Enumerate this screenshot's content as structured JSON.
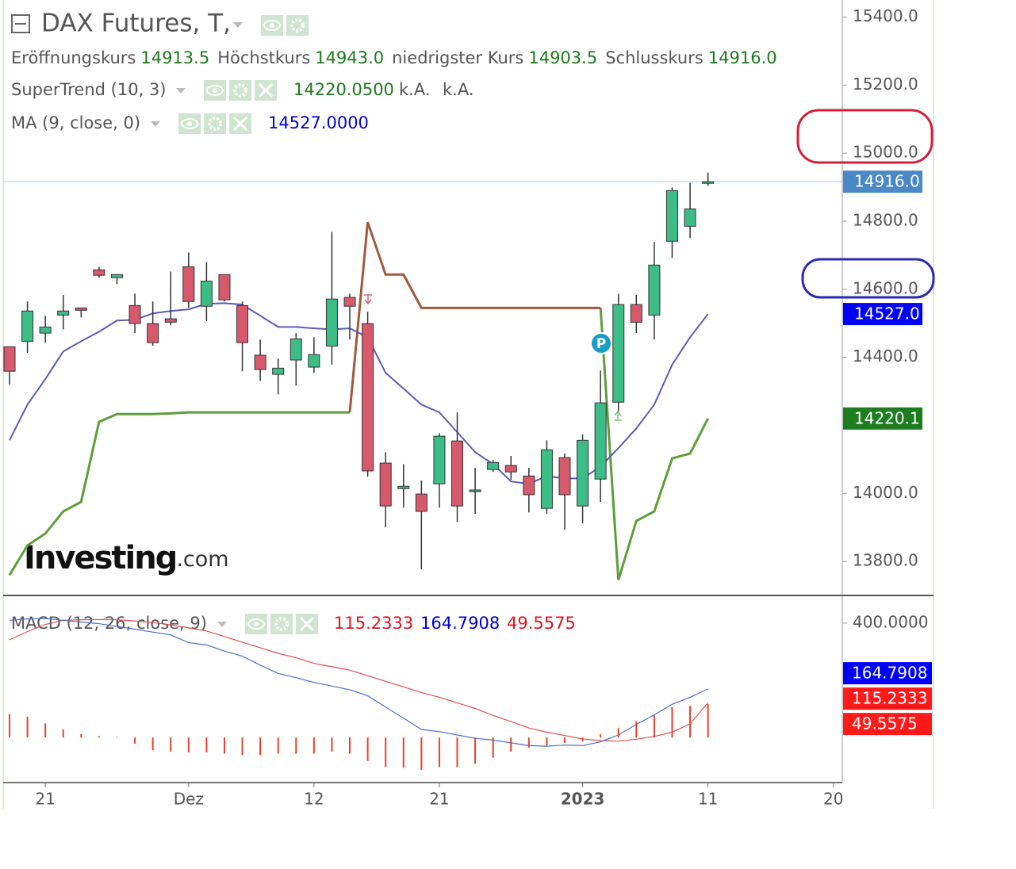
{
  "chart_data": [
    {
      "type": "candlestick",
      "title": "DAX Futures, T,",
      "categories": [
        null,
        null,
        "21",
        null,
        null,
        null,
        null,
        null,
        null,
        null,
        "Dez",
        null,
        null,
        null,
        null,
        null,
        null,
        "12",
        null,
        null,
        null,
        null,
        null,
        null,
        "21",
        null,
        null,
        null,
        null,
        null,
        null,
        null,
        "2023",
        null,
        null,
        null,
        null,
        null,
        null,
        "11",
        null,
        null,
        null,
        null,
        null,
        null,
        "20"
      ],
      "open": [
        14431,
        14447,
        14471,
        14524,
        14545,
        14657,
        14634,
        14552,
        14499,
        14513,
        14666,
        14550,
        14643,
        14552,
        14406,
        14350,
        14392,
        14371,
        14433,
        14576,
        14499,
        14089,
        14014,
        13998,
        14028,
        14154,
        14005,
        14070,
        14082,
        14051,
        13956,
        14105,
        13963,
        14042,
        14268,
        14555,
        14524,
        14741,
        14785,
        14913.5,
        null,
        null,
        null,
        null,
        null,
        null,
        null
      ],
      "high": [
        14431,
        14564,
        14522,
        14583,
        14545,
        14666,
        14643,
        14587,
        14564,
        14652,
        14708,
        14680,
        14643,
        14564,
        14452,
        14396,
        14471,
        14459,
        14769,
        14587,
        14534,
        14121,
        14086,
        14038,
        14177,
        14238,
        14075,
        14098,
        14110,
        14075,
        14156,
        14117,
        14173,
        14361,
        14587,
        14583,
        14739,
        14899,
        14913,
        14943,
        null,
        null,
        null,
        null,
        null,
        null,
        null
      ],
      "low": [
        14319,
        14413,
        14443,
        14482,
        14517,
        14634,
        14615,
        14471,
        14434,
        14494,
        14545,
        14506,
        14564,
        14359,
        14331,
        14291,
        14317,
        14354,
        14378,
        14452,
        14049,
        13900,
        13958,
        13777,
        13958,
        13916,
        13940,
        14063,
        14040,
        13944,
        13940,
        13893,
        13912,
        13975,
        14238,
        14471,
        14452,
        14692,
        14750,
        14903.5,
        null,
        null,
        null,
        null,
        null,
        null,
        null
      ],
      "close": [
        14359,
        14536,
        14489,
        14536,
        14538,
        14641,
        14643,
        14499,
        14443,
        14503,
        14564,
        14624,
        14569,
        14443,
        14364,
        14368,
        14454,
        14408,
        14571,
        14550,
        14066,
        13963,
        14021,
        13947,
        14168,
        13963,
        14010,
        14091,
        14063,
        13996,
        14128,
        13996,
        14156,
        14266,
        14555,
        14503,
        14671,
        14890,
        14836,
        14916,
        null,
        null,
        null,
        null,
        null,
        null,
        null
      ],
      "ohlc_names": [
        "Eröffnungskurs",
        "Höchstkurs",
        "niedrigster Kurs",
        "Schlusskurs"
      ],
      "ohlc_labels": [
        "14913.5",
        "14943.0",
        "14903.5",
        "14916.0"
      ],
      "up_color": "#3dbd86",
      "down_color": "#d65a6c",
      "last_color": "#4a88c6",
      "ylim": [
        13700,
        15450
      ],
      "yticks": [
        {
          "value": 15400,
          "label": "15400.0"
        },
        {
          "value": 15200,
          "label": "15200.0"
        },
        {
          "value": 15000,
          "label": "15000.0"
        },
        {
          "value": 14800,
          "label": "14800.0"
        },
        {
          "value": 14600,
          "label": "14600.0"
        },
        {
          "value": 14400,
          "label": "14400.0"
        },
        {
          "value": 14000,
          "label": "14000.0"
        },
        {
          "value": 13800,
          "label": "13800.0"
        }
      ],
      "overlays": [
        {
          "type": "supertrend",
          "name": "SuperTrend (10, 3)",
          "value_label": "14220.0500",
          "extra_labels": [
            "k.A.",
            "k.A."
          ],
          "marker_label": "14220.1",
          "marker_color": "#1e7d1e",
          "series": [
            {
              "color": "#5e9e3a",
              "values": [
                13760,
                13847,
                13882,
                13947,
                13975,
                14210,
                14233,
                14233,
                14233,
                14235,
                14238,
                14238,
                14238,
                14238,
                14238,
                14238,
                14238,
                14238,
                14238,
                14238,
                null,
                null,
                null,
                null,
                null,
                null,
                null,
                null,
                null,
                null,
                null,
                null,
                null,
                14545,
                13746,
                13919,
                13947,
                14103,
                14117,
                14220.05,
                null,
                null,
                null,
                null,
                null,
                null,
                null
              ]
            },
            {
              "color": "#a0583e",
              "values": [
                null,
                null,
                null,
                null,
                null,
                null,
                null,
                null,
                null,
                null,
                null,
                null,
                null,
                null,
                null,
                null,
                null,
                null,
                null,
                14238,
                14797,
                14643,
                14643,
                14545,
                14545,
                14545,
                14545,
                14545,
                14545,
                14545,
                14545,
                14545,
                14545,
                14545,
                null,
                null,
                null,
                null,
                null,
                null,
                null,
                null,
                null,
                null,
                null,
                null,
                null
              ]
            }
          ]
        },
        {
          "type": "line",
          "name": "MA (9, close, 0)",
          "value_label": "14527.0000",
          "marker_label": "14527.0",
          "marker_color": "#0000ff",
          "color": "#5b5bb8",
          "values": [
            14156,
            14261,
            14336,
            14417,
            14447,
            14475,
            14508,
            14510,
            14529,
            14536,
            14541,
            14557,
            14559,
            14555,
            14522,
            14489,
            14489,
            14485,
            14482,
            14485,
            14459,
            14354,
            14308,
            14261,
            14238,
            14180,
            14121,
            14086,
            14035,
            14028,
            14051,
            14044,
            14044,
            14079,
            14133,
            14191,
            14261,
            14378,
            14459,
            14527,
            null,
            null,
            null,
            null,
            null,
            null,
            null
          ]
        }
      ],
      "pivot_label": "P",
      "watermark": [
        "Investing",
        ".com"
      ]
    },
    {
      "type": "macd",
      "name": "MACD (12, 26, close, 9)",
      "ylim": [
        -170,
        496
      ],
      "yticks": [
        {
          "value": 400,
          "label": "400.0000"
        }
      ],
      "y2lim": [
        -67,
        210
      ],
      "series": [
        {
          "type": "line",
          "color": "#e05050",
          "value_label": "115.2333",
          "marker_color": "#ff1a1a",
          "values": [
            340,
            370,
            395,
            410,
            412,
            413,
            412,
            408,
            402,
            394,
            383,
            372,
            352,
            332,
            312,
            292,
            276,
            256,
            244,
            232,
            212,
            192,
            172,
            152,
            135,
            115,
            95,
            70,
            48,
            25,
            10,
            -2,
            -14,
            -20,
            -22,
            -15,
            -5,
            10,
            40,
            115.2333,
            null,
            null,
            null,
            null,
            null,
            null,
            null
          ]
        },
        {
          "type": "line",
          "color": "#4a6fd0",
          "value_label": "164.7908",
          "marker_color": "#0000ff",
          "values": [
            410,
            415,
            416,
            410,
            404,
            398,
            388,
            378,
            368,
            358,
            330,
            322,
            300,
            282,
            250,
            220,
            205,
            188,
            175,
            162,
            140,
            100,
            60,
            20,
            12,
            0,
            -12,
            -18,
            -28,
            -38,
            -40,
            -36,
            -38,
            -24,
            0,
            38,
            72,
            110,
            135,
            164.7908,
            null,
            null,
            null,
            null,
            null,
            null,
            null
          ]
        },
        {
          "type": "histogram",
          "axis": "y2",
          "color": "#e8402c",
          "value_label": "49.5575",
          "marker_color": "#ff1a1a",
          "values": [
            35,
            31,
            21,
            12,
            5,
            2,
            1,
            -9,
            -19,
            -21,
            -22,
            -22,
            -24,
            -26,
            -26,
            -24,
            -24,
            -24,
            -21,
            -24,
            -35,
            -44,
            -45,
            -48,
            -44,
            -44,
            -39,
            -30,
            -21,
            -15,
            -12,
            -8,
            -6,
            5,
            14,
            24,
            33,
            45,
            47,
            49.5575,
            null,
            null,
            null,
            null,
            null,
            null,
            null
          ]
        }
      ]
    }
  ]
}
